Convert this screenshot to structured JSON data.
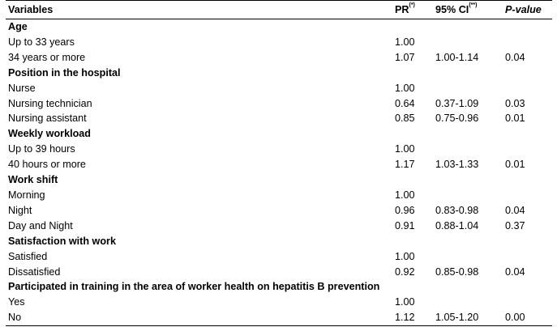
{
  "header": {
    "variables": "Variables",
    "pr": "PR",
    "pr_sup": "(*)",
    "ci": "95% CI",
    "ci_sup": "(**)",
    "pvalue": "P-value"
  },
  "groups": [
    {
      "title": "Age",
      "rows": [
        {
          "label": "Up to 33 years",
          "pr": "1.00",
          "ci": "",
          "p": ""
        },
        {
          "label": "34 years or more",
          "pr": "1.07",
          "ci": "1.00-1.14",
          "p": "0.04"
        }
      ]
    },
    {
      "title": "Position in the hospital",
      "rows": [
        {
          "label": "Nurse",
          "pr": "1.00",
          "ci": "",
          "p": ""
        },
        {
          "label": "Nursing technician",
          "pr": "0.64",
          "ci": "0.37-1.09",
          "p": "0.03"
        },
        {
          "label": "Nursing assistant",
          "pr": "0.85",
          "ci": "0.75-0.96",
          "p": "0.01"
        }
      ]
    },
    {
      "title": "Weekly workload",
      "rows": [
        {
          "label": "Up to 39 hours",
          "pr": "1.00",
          "ci": "",
          "p": ""
        },
        {
          "label": "40 hours or more",
          "pr": "1.17",
          "ci": "1.03-1.33",
          "p": "0.01"
        }
      ]
    },
    {
      "title": "Work shift",
      "rows": [
        {
          "label": "Morning",
          "pr": "1.00",
          "ci": "",
          "p": ""
        },
        {
          "label": "Night",
          "pr": "0.96",
          "ci": "0.83-0.98",
          "p": "0.04"
        },
        {
          "label": "Day and Night",
          "pr": "0.91",
          "ci": "0.88-1.04",
          "p": "0.37"
        }
      ]
    },
    {
      "title": "Satisfaction with work",
      "rows": [
        {
          "label": "Satisfied",
          "pr": "1.00",
          "ci": "",
          "p": ""
        },
        {
          "label": "Dissatisfied",
          "pr": "0.92",
          "ci": "0.85-0.98",
          "p": "0.04"
        }
      ]
    },
    {
      "title": "Participated in training in the area of worker health on hepatitis B prevention",
      "rows": [
        {
          "label": "Yes",
          "pr": "1.00",
          "ci": "",
          "p": ""
        },
        {
          "label": "No",
          "pr": "1.12",
          "ci": "1.05-1.20",
          "p": "0.00"
        }
      ]
    }
  ]
}
